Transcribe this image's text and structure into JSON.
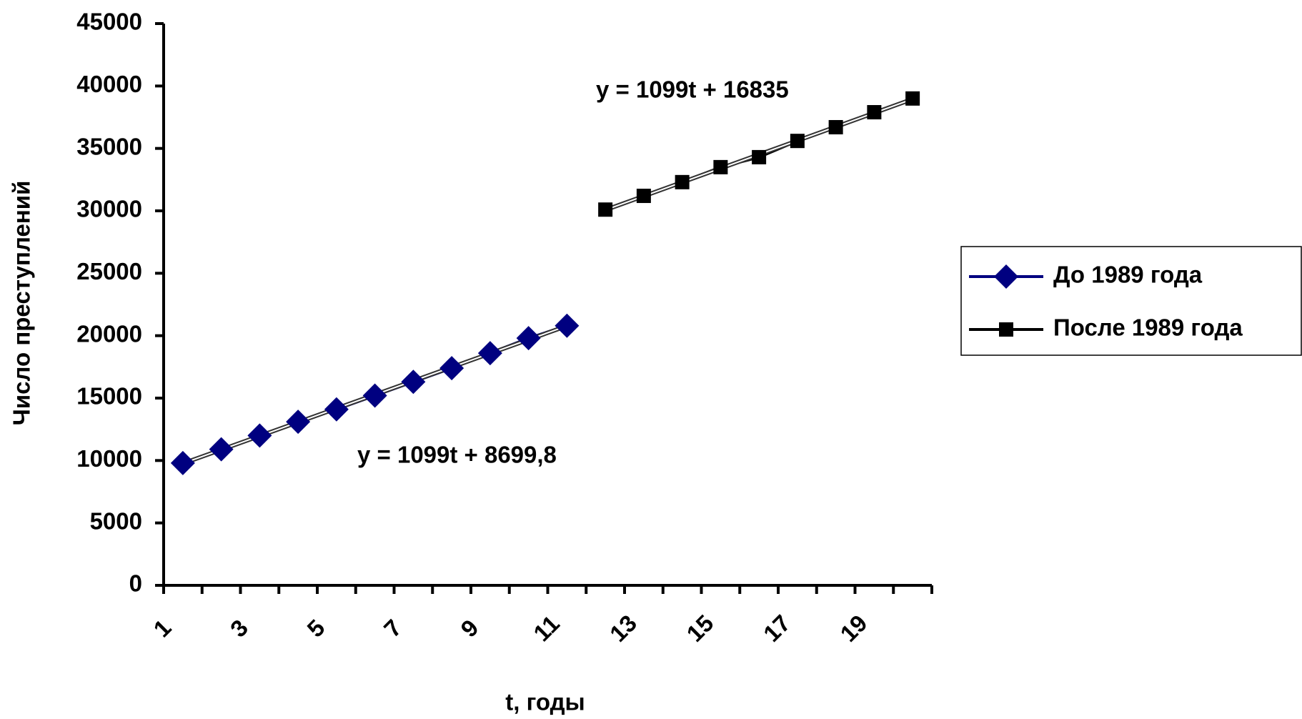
{
  "chart_data": {
    "type": "line",
    "x_label": "t, годы",
    "y_label": "Число преступлений",
    "categories": [
      "1",
      null,
      "3",
      null,
      "5",
      null,
      "7",
      null,
      "9",
      null,
      "11",
      null,
      "13",
      null,
      "15",
      null,
      "17",
      null,
      "19",
      null
    ],
    "series": [
      {
        "name": "До 1989 года",
        "color": "#000080",
        "marker": "diamond",
        "values": [
          9800,
          10900,
          12000,
          13100,
          14100,
          15200,
          16300,
          17400,
          18600,
          19800,
          20800,
          null,
          null,
          null,
          null,
          null,
          null,
          null,
          null,
          null
        ]
      },
      {
        "name": "После 1989 года",
        "color": "#000000",
        "marker": "square",
        "values": [
          null,
          null,
          null,
          null,
          null,
          null,
          null,
          null,
          null,
          null,
          null,
          30100,
          31200,
          32300,
          33500,
          34300,
          35600,
          36700,
          37900,
          39000
        ]
      }
    ],
    "annotations": [
      "y = 1099t + 8699,8",
      "y = 1099t + 16835"
    ],
    "ylim": [
      0,
      45000
    ],
    "yticks": [
      0,
      5000,
      10000,
      15000,
      20000,
      25000,
      30000,
      35000,
      40000,
      45000
    ],
    "grid": false,
    "legend": "right"
  }
}
